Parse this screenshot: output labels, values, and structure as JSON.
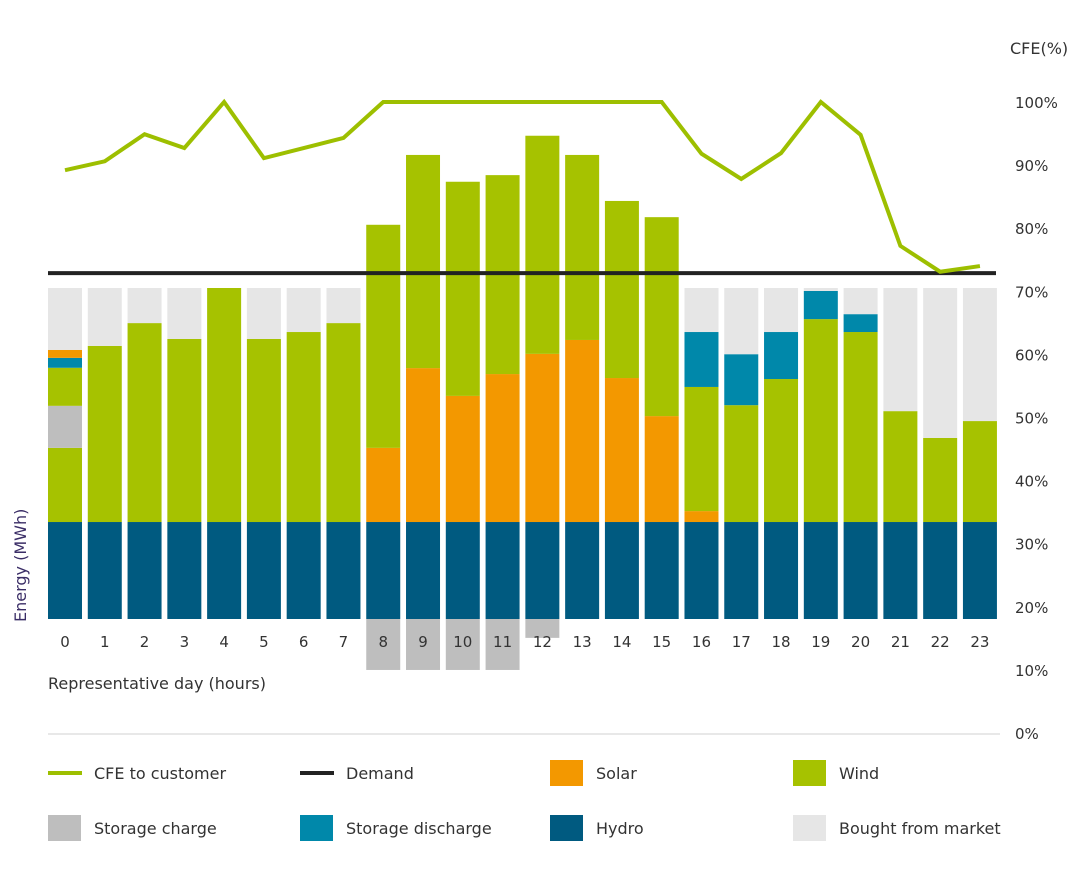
{
  "chart_data": {
    "type": "bar",
    "subtype": "stacked bar with line overlay",
    "xlabel": "Representative day (hours)",
    "ylabel": "Energy (MWh)",
    "y2label": "CFE(%)",
    "y2lim": [
      0,
      100
    ],
    "y2ticks": [
      "0%",
      "10%",
      "20%",
      "30%",
      "40%",
      "50%",
      "60%",
      "70%",
      "80%",
      "90%",
      "100%"
    ],
    "grid": false,
    "legend_placement": "bottom",
    "categories": [
      "0",
      "1",
      "2",
      "3",
      "4",
      "5",
      "6",
      "7",
      "8",
      "9",
      "10",
      "11",
      "12",
      "13",
      "14",
      "15",
      "16",
      "17",
      "18",
      "19",
      "20",
      "21",
      "22",
      "23"
    ],
    "colors": {
      "cfe": "#9dbf00",
      "demand": "#222222",
      "solar": "#f39800",
      "wind": "#a6c200",
      "storage_charge": "#bebebe",
      "storage_discharge": "#0088aa",
      "hydro": "#005a80",
      "market": "#e6e6e6"
    },
    "legend": [
      {
        "key": "cfe",
        "label": "CFE to customer",
        "kind": "line"
      },
      {
        "key": "demand",
        "label": "Demand",
        "kind": "line"
      },
      {
        "key": "solar",
        "label": "Solar",
        "kind": "box"
      },
      {
        "key": "wind",
        "label": "Wind",
        "kind": "box"
      },
      {
        "key": "storage_charge",
        "label": "Storage charge",
        "kind": "box"
      },
      {
        "key": "storage_discharge",
        "label": "Storage discharge",
        "kind": "box"
      },
      {
        "key": "hydro",
        "label": "Hydro",
        "kind": "box"
      },
      {
        "key": "market",
        "label": "Bought from market",
        "kind": "box"
      }
    ],
    "demand": 104.5,
    "stacks": [
      [
        [
          "hydro",
          29.3
        ],
        [
          "wind",
          22.4
        ],
        [
          "storage_charge",
          12.7
        ],
        [
          "wind",
          11.5
        ],
        [
          "storage_discharge",
          3.0
        ],
        [
          "solar",
          2.4
        ],
        [
          "market",
          18.7
        ]
      ],
      [
        [
          "hydro",
          29.3
        ],
        [
          "wind",
          53.2
        ],
        [
          "market",
          17.5
        ]
      ],
      [
        [
          "hydro",
          29.3
        ],
        [
          "wind",
          60.1
        ],
        [
          "market",
          10.6
        ]
      ],
      [
        [
          "hydro",
          29.3
        ],
        [
          "wind",
          55.3
        ],
        [
          "market",
          15.4
        ]
      ],
      [
        [
          "hydro",
          29.3
        ],
        [
          "wind",
          70.7
        ]
      ],
      [
        [
          "hydro",
          29.3
        ],
        [
          "wind",
          55.3
        ],
        [
          "market",
          15.4
        ]
      ],
      [
        [
          "hydro",
          29.3
        ],
        [
          "wind",
          57.4
        ],
        [
          "market",
          13.3
        ]
      ],
      [
        [
          "hydro",
          29.3
        ],
        [
          "wind",
          60.1
        ],
        [
          "market",
          10.6
        ]
      ],
      [
        [
          "hydro",
          29.3
        ],
        [
          "solar",
          22.4
        ],
        [
          "wind",
          67.4
        ]
      ],
      [
        [
          "hydro",
          29.3
        ],
        [
          "solar",
          46.5
        ],
        [
          "wind",
          64.4
        ]
      ],
      [
        [
          "hydro",
          29.3
        ],
        [
          "solar",
          38.1
        ],
        [
          "wind",
          64.7
        ]
      ],
      [
        [
          "hydro",
          29.3
        ],
        [
          "solar",
          44.7
        ],
        [
          "wind",
          60.1
        ]
      ],
      [
        [
          "hydro",
          29.3
        ],
        [
          "solar",
          50.8
        ],
        [
          "wind",
          65.9
        ]
      ],
      [
        [
          "hydro",
          29.3
        ],
        [
          "solar",
          55.0
        ],
        [
          "wind",
          55.9
        ]
      ],
      [
        [
          "hydro",
          29.3
        ],
        [
          "solar",
          43.5
        ],
        [
          "wind",
          53.5
        ]
      ],
      [
        [
          "hydro",
          29.3
        ],
        [
          "solar",
          32.0
        ],
        [
          "wind",
          60.1
        ]
      ],
      [
        [
          "hydro",
          29.3
        ],
        [
          "solar",
          3.3
        ],
        [
          "wind",
          37.5
        ],
        [
          "storage_discharge",
          16.6
        ],
        [
          "market",
          13.3
        ]
      ],
      [
        [
          "hydro",
          29.3
        ],
        [
          "wind",
          35.3
        ],
        [
          "storage_discharge",
          15.4
        ],
        [
          "market",
          20.0
        ]
      ],
      [
        [
          "hydro",
          29.3
        ],
        [
          "wind",
          43.2
        ],
        [
          "storage_discharge",
          14.2
        ],
        [
          "market",
          13.3
        ]
      ],
      [
        [
          "hydro",
          29.3
        ],
        [
          "wind",
          61.3
        ],
        [
          "storage_discharge",
          8.5
        ],
        [
          "market",
          0.9
        ]
      ],
      [
        [
          "hydro",
          29.3
        ],
        [
          "wind",
          57.4
        ],
        [
          "storage_discharge",
          5.4
        ],
        [
          "market",
          7.9
        ]
      ],
      [
        [
          "hydro",
          29.3
        ],
        [
          "wind",
          33.5
        ],
        [
          "market",
          37.2
        ]
      ],
      [
        [
          "hydro",
          29.3
        ],
        [
          "wind",
          25.4
        ],
        [
          "market",
          45.3
        ]
      ],
      [
        [
          "hydro",
          29.3
        ],
        [
          "wind",
          30.5
        ],
        [
          "market",
          40.2
        ]
      ]
    ],
    "storage_charge_below": [
      0,
      0,
      0,
      0,
      0,
      0,
      0,
      0,
      15.4,
      15.4,
      15.4,
      15.4,
      5.7,
      0,
      0,
      0,
      0,
      0,
      0,
      0,
      0,
      0,
      0,
      0
    ],
    "cfe_percent": [
      89.2,
      90.6,
      94.9,
      92.7,
      100,
      91.1,
      92.7,
      94.3,
      100,
      100,
      100,
      100,
      100,
      100,
      100,
      100,
      91.8,
      87.8,
      91.9,
      100,
      94.8,
      77.2,
      73.1,
      74.0
    ]
  }
}
